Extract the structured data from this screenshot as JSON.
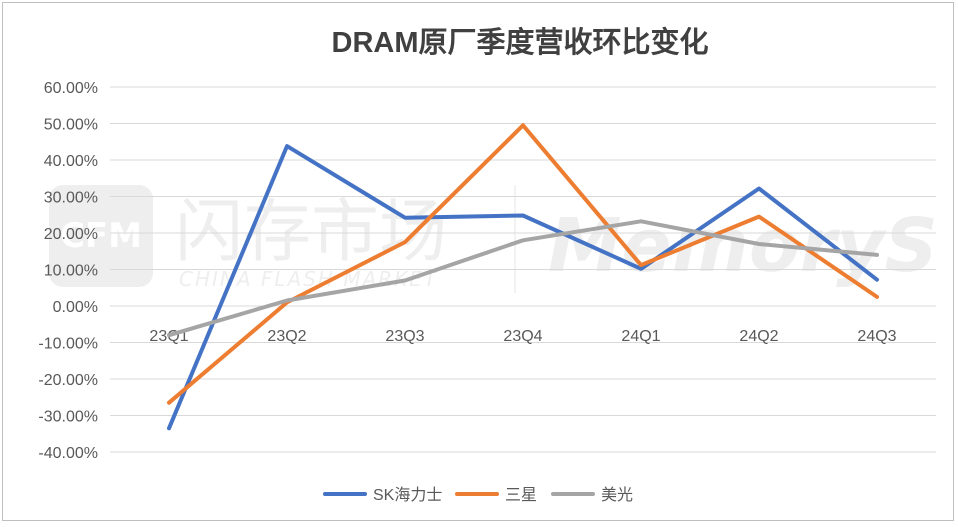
{
  "chart_data": {
    "type": "line",
    "title": "DRAM原厂季度营收环比变化",
    "categories": [
      "23Q1",
      "23Q2",
      "23Q3",
      "23Q4",
      "24Q1",
      "24Q2",
      "24Q3"
    ],
    "y_ticks": [
      "60.00%",
      "50.00%",
      "40.00%",
      "30.00%",
      "20.00%",
      "10.00%",
      "0.00%",
      "-10.00%",
      "-20.00%",
      "-30.00%",
      "-40.00%"
    ],
    "ylim": [
      -40,
      60
    ],
    "grid": true,
    "legend_position": "bottom",
    "series": [
      {
        "name": "SK海力士",
        "color": "#4472C4",
        "values": [
          -33.5,
          43.8,
          24.2,
          24.8,
          10.2,
          32.2,
          7.2
        ]
      },
      {
        "name": "三星",
        "color": "#ED7D31",
        "values": [
          -26.5,
          1.0,
          17.5,
          49.5,
          11.2,
          24.5,
          2.5
        ]
      },
      {
        "name": "美光",
        "color": "#A5A5A5",
        "values": [
          -8.0,
          1.5,
          7.0,
          18.0,
          23.2,
          17.0,
          14.0
        ]
      }
    ]
  },
  "watermark": {
    "logo_text": "CFM",
    "cn_text": "闪存市场",
    "en_text": "CHINA FLASH MARKET",
    "brand_text": "MemoryS"
  }
}
